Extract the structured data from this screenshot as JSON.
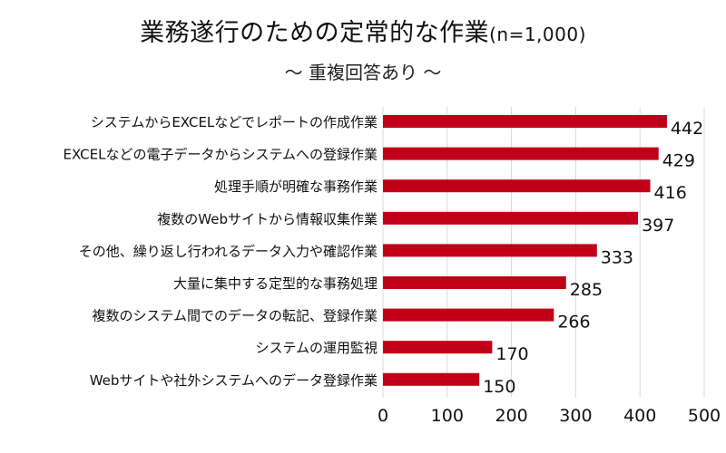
{
  "chart_data": {
    "type": "bar",
    "orientation": "horizontal",
    "title": "業務遂行のための定常的な作業",
    "title_note": "(n=1,000)",
    "subtitle": "～ 重複回答あり ～",
    "categories": [
      "システムからEXCELなどでレポートの作成作業",
      "EXCELなどの電子データからシステムへの登録作業",
      "処理手順が明確な事務作業",
      "複数のWebサイトから情報収集作業",
      "その他、繰り返し行われるデータ入力や確認作業",
      "大量に集中する定型的な事務処理",
      "複数のシステム間でのデータの転記、登録作業",
      "システムの運用監視",
      "Webサイトや社外システムへのデータ登録作業"
    ],
    "values": [
      442,
      429,
      416,
      397,
      333,
      285,
      266,
      170,
      150
    ],
    "xlim": [
      0,
      500
    ],
    "xticks": [
      0,
      100,
      200,
      300,
      400,
      500
    ],
    "grid": true,
    "bar_color": "#c00018",
    "grid_color": "#d9d9d9",
    "text_color": "#111111"
  }
}
